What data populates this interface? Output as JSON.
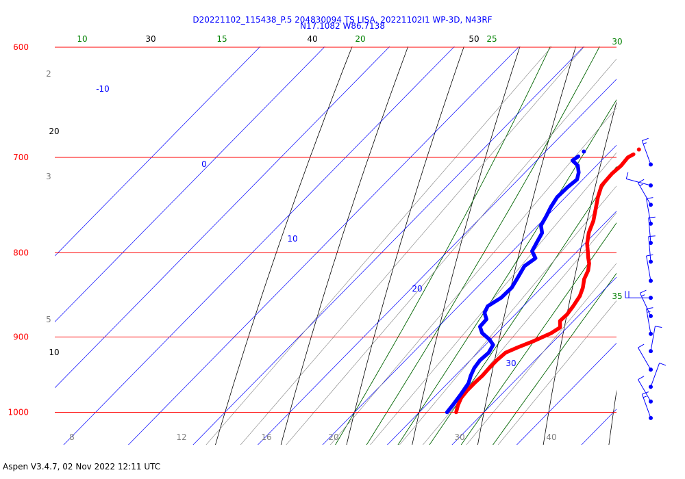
{
  "header": {
    "line1": "D20221102_115438_P.5 204830094 TS LISA, 20221102I1 WP-3D, N43RF",
    "line2": "N17.1082 W86.7138"
  },
  "footer": "Aspen V3.4.7, 02 Nov 2022  12:11 UTC",
  "colors": {
    "isobar": "#ff0000",
    "isotherm": "#0000ff",
    "dry_adiabat": "#000000",
    "moist_adiabat": "#006400",
    "mixing_ratio": "#808080",
    "temperature": "#ff0000",
    "dewpoint": "#0000ff",
    "wind": "#0000ff"
  },
  "chart_data": {
    "type": "line",
    "title": "",
    "pressure_axis": {
      "ticks": [
        600,
        700,
        800,
        900,
        1000
      ],
      "labels": [
        "600",
        "700",
        "800",
        "900",
        "1000"
      ],
      "range": [
        600,
        1040
      ]
    },
    "isotherm_labels": [
      "-10",
      "0",
      "10",
      "20",
      "30"
    ],
    "dry_adiabat_labels": [
      "30",
      "40",
      "50",
      "20",
      "10"
    ],
    "moist_adiabat_labels": [
      "10",
      "15",
      "20",
      "25",
      "30",
      "35"
    ],
    "mixing_ratio_labels": [
      "2",
      "3",
      "5",
      "8",
      "12",
      "16",
      "20",
      "30",
      "40"
    ],
    "series": [
      {
        "key": "temperature",
        "color": "#ff0000",
        "points": [
          [
            1000,
            25.7
          ],
          [
            990,
            24.9
          ],
          [
            980,
            24.3
          ],
          [
            970,
            24.1
          ],
          [
            960,
            24.1
          ],
          [
            950,
            24.2
          ],
          [
            940,
            24.1
          ],
          [
            930,
            24.1
          ],
          [
            920,
            24.3
          ],
          [
            913,
            25.4
          ],
          [
            905,
            26.9
          ],
          [
            895,
            28.4
          ],
          [
            888,
            28.9
          ],
          [
            880,
            27.9
          ],
          [
            872,
            28.0
          ],
          [
            862,
            27.7
          ],
          [
            850,
            27.2
          ],
          [
            840,
            26.4
          ],
          [
            830,
            25.3
          ],
          [
            820,
            24.6
          ],
          [
            812,
            23.7
          ],
          [
            805,
            22.6
          ],
          [
            798,
            21.6
          ],
          [
            790,
            20.4
          ],
          [
            778,
            19.0
          ],
          [
            765,
            17.9
          ],
          [
            752,
            16.4
          ],
          [
            740,
            15.0
          ],
          [
            728,
            13.8
          ],
          [
            716,
            13.6
          ],
          [
            708,
            13.8
          ],
          [
            700,
            13.6
          ],
          [
            697,
            14.0
          ]
        ]
      },
      {
        "key": "dewpoint",
        "color": "#0000ff",
        "points": [
          [
            1000,
            24.3
          ],
          [
            990,
            24.1
          ],
          [
            975,
            23.7
          ],
          [
            960,
            23.2
          ],
          [
            950,
            22.4
          ],
          [
            940,
            21.8
          ],
          [
            930,
            21.5
          ],
          [
            920,
            21.7
          ],
          [
            910,
            21.2
          ],
          [
            903,
            19.8
          ],
          [
            895,
            17.7
          ],
          [
            887,
            16.4
          ],
          [
            878,
            16.3
          ],
          [
            870,
            15.0
          ],
          [
            862,
            14.5
          ],
          [
            852,
            15.3
          ],
          [
            840,
            15.4
          ],
          [
            828,
            14.8
          ],
          [
            815,
            14.1
          ],
          [
            806,
            14.6
          ],
          [
            798,
            13.0
          ],
          [
            788,
            12.4
          ],
          [
            778,
            11.8
          ],
          [
            770,
            10.5
          ],
          [
            760,
            9.9
          ],
          [
            750,
            9.2
          ],
          [
            740,
            8.7
          ],
          [
            730,
            8.8
          ],
          [
            722,
            9.1
          ],
          [
            715,
            8.3
          ],
          [
            708,
            7.1
          ],
          [
            703,
            5.5
          ],
          [
            699,
            5.8
          ]
        ]
      }
    ],
    "wind_barbs": [
      {
        "pressure": 707,
        "direction": 340,
        "speed_kt": 15
      },
      {
        "pressure": 728,
        "direction": 285,
        "speed_kt": 10
      },
      {
        "pressure": 748,
        "direction": 330,
        "speed_kt": 15
      },
      {
        "pressure": 768,
        "direction": 350,
        "speed_kt": 10
      },
      {
        "pressure": 789,
        "direction": 355,
        "speed_kt": 10
      },
      {
        "pressure": 810,
        "direction": 355,
        "speed_kt": 10
      },
      {
        "pressure": 832,
        "direction": 350,
        "speed_kt": 10
      },
      {
        "pressure": 852,
        "direction": 270,
        "speed_kt": 20
      },
      {
        "pressure": 874,
        "direction": 335,
        "speed_kt": 15
      },
      {
        "pressure": 896,
        "direction": 350,
        "speed_kt": 15
      },
      {
        "pressure": 918,
        "direction": 10,
        "speed_kt": 10
      },
      {
        "pressure": 942,
        "direction": 330,
        "speed_kt": 10
      },
      {
        "pressure": 965,
        "direction": 20,
        "speed_kt": 10
      },
      {
        "pressure": 985,
        "direction": 330,
        "speed_kt": 10
      },
      {
        "pressure": 1008,
        "direction": 340,
        "speed_kt": 15
      }
    ]
  }
}
